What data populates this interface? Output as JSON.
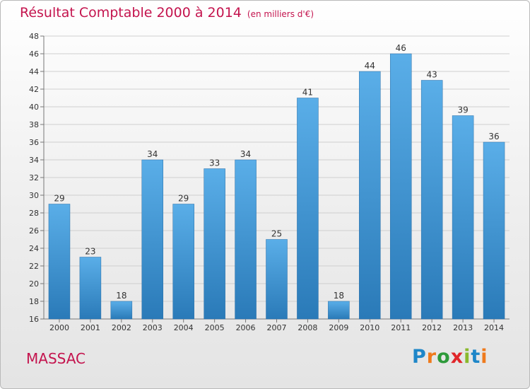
{
  "title": "Résultat Comptable 2000 à 2014",
  "unit": "(en milliers d'€)",
  "commune": "MASSAC",
  "logo": {
    "letters": [
      "P",
      "r",
      "o",
      "x",
      "i",
      "t",
      "i"
    ]
  },
  "colors": {
    "bar_top": "#5aaee8",
    "bar_bottom": "#2a7ab8",
    "title": "#c4144e",
    "grid": "#cfcfcf"
  },
  "chart_data": {
    "type": "bar",
    "title": "Résultat Comptable 2000 à 2014",
    "xlabel": "",
    "ylabel": "",
    "categories": [
      "2000",
      "2001",
      "2002",
      "2003",
      "2004",
      "2005",
      "2006",
      "2007",
      "2008",
      "2009",
      "2010",
      "2011",
      "2012",
      "2013",
      "2014"
    ],
    "values": [
      29,
      23,
      18,
      34,
      29,
      33,
      34,
      25,
      41,
      18,
      44,
      46,
      43,
      39,
      36
    ],
    "ylim": [
      16,
      48
    ],
    "yticks": [
      16,
      18,
      20,
      22,
      24,
      26,
      28,
      30,
      32,
      34,
      36,
      38,
      40,
      42,
      44,
      46,
      48
    ],
    "grid": true,
    "legend": "none"
  }
}
